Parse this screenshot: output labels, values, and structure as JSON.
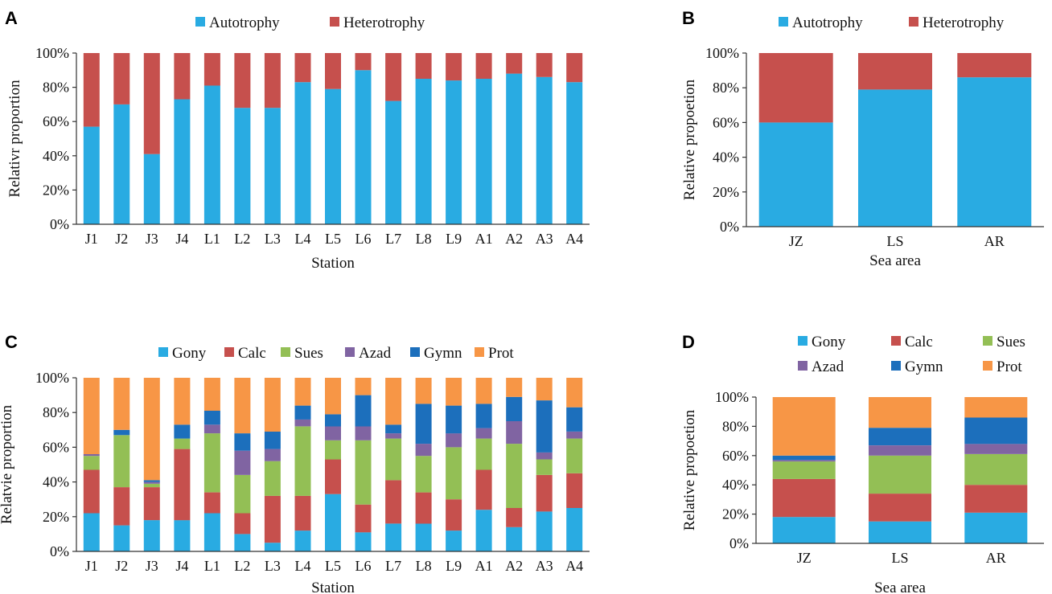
{
  "colors": {
    "Autotrophy": "#29ABE2",
    "Heterotrophy": "#C6504D",
    "Gony": "#29ABE2",
    "Calc": "#C6504D",
    "Sues": "#93BF55",
    "Azad": "#8064A2",
    "Gymn": "#1C6FBC",
    "Prot": "#F79646"
  },
  "chart_data": [
    {
      "panel": "A",
      "type": "bar",
      "stacked": true,
      "title": "",
      "xlabel": "Station",
      "ylabel": "Relativr proportion",
      "ylim": [
        0,
        100
      ],
      "yticks": [
        "0%",
        "20%",
        "40%",
        "60%",
        "80%",
        "100%"
      ],
      "legend_position": "top",
      "categories": [
        "J1",
        "J2",
        "J3",
        "J4",
        "L1",
        "L2",
        "L3",
        "L4",
        "L5",
        "L6",
        "L7",
        "L8",
        "L9",
        "A1",
        "A2",
        "A3",
        "A4"
      ],
      "series": [
        {
          "name": "Autotrophy",
          "values": [
            57,
            70,
            41,
            73,
            81,
            68,
            68,
            83,
            79,
            90,
            72,
            85,
            84,
            85,
            88,
            86,
            83
          ]
        },
        {
          "name": "Heterotrophy",
          "values": [
            43,
            30,
            59,
            27,
            19,
            32,
            32,
            17,
            21,
            10,
            28,
            15,
            16,
            15,
            12,
            14,
            17
          ]
        }
      ]
    },
    {
      "panel": "B",
      "type": "bar",
      "stacked": true,
      "title": "",
      "xlabel": "Sea area",
      "ylabel": "Relative propoetion",
      "ylim": [
        0,
        100
      ],
      "yticks": [
        "0%",
        "20%",
        "40%",
        "60%",
        "80%",
        "100%"
      ],
      "legend_position": "top",
      "categories": [
        "JZ",
        "LS",
        "AR"
      ],
      "series": [
        {
          "name": "Autotrophy",
          "values": [
            60,
            79,
            86
          ]
        },
        {
          "name": "Heterotrophy",
          "values": [
            40,
            21,
            14
          ]
        }
      ]
    },
    {
      "panel": "C",
      "type": "bar",
      "stacked": true,
      "title": "",
      "xlabel": "Station",
      "ylabel": "Relatvie proportion",
      "ylim": [
        0,
        100
      ],
      "yticks": [
        "0%",
        "20%",
        "40%",
        "60%",
        "80%",
        "100%"
      ],
      "legend_position": "top",
      "categories": [
        "J1",
        "J2",
        "J3",
        "J4",
        "L1",
        "L2",
        "L3",
        "L4",
        "L5",
        "L6",
        "L7",
        "L8",
        "L9",
        "A1",
        "A2",
        "A3",
        "A4"
      ],
      "series": [
        {
          "name": "Gony",
          "values": [
            22,
            15,
            18,
            18,
            22,
            10,
            5,
            12,
            33,
            11,
            16,
            16,
            12,
            24,
            14,
            23,
            25
          ]
        },
        {
          "name": "Calc",
          "values": [
            25,
            22,
            19,
            41,
            12,
            12,
            27,
            20,
            20,
            16,
            25,
            18,
            18,
            23,
            11,
            21,
            20
          ]
        },
        {
          "name": "Sues",
          "values": [
            8,
            30,
            2,
            6,
            34,
            22,
            20,
            40,
            11,
            37,
            24,
            21,
            30,
            18,
            37,
            9,
            20
          ]
        },
        {
          "name": "Azad",
          "values": [
            1,
            0,
            1,
            0,
            5,
            14,
            7,
            4,
            8,
            8,
            3,
            7,
            8,
            6,
            13,
            4,
            4
          ]
        },
        {
          "name": "Gymn",
          "values": [
            0,
            3,
            1,
            8,
            8,
            10,
            10,
            8,
            7,
            18,
            5,
            23,
            16,
            14,
            14,
            30,
            14
          ]
        },
        {
          "name": "Prot",
          "values": [
            44,
            30,
            59,
            27,
            19,
            32,
            31,
            16,
            21,
            10,
            27,
            15,
            16,
            15,
            11,
            13,
            17
          ]
        }
      ]
    },
    {
      "panel": "D",
      "type": "bar",
      "stacked": true,
      "title": "",
      "xlabel": "Sea area",
      "ylabel": "Relative propoetion",
      "ylim": [
        0,
        100
      ],
      "yticks": [
        "0%",
        "20%",
        "40%",
        "60%",
        "80%",
        "100%"
      ],
      "legend_position": "top",
      "categories": [
        "JZ",
        "LS",
        "AR"
      ],
      "series": [
        {
          "name": "Gony",
          "values": [
            18,
            15,
            21
          ]
        },
        {
          "name": "Calc",
          "values": [
            26,
            19,
            19
          ]
        },
        {
          "name": "Sues",
          "values": [
            12,
            26,
            21
          ]
        },
        {
          "name": "Azad",
          "values": [
            1,
            7,
            7
          ]
        },
        {
          "name": "Gymn",
          "values": [
            3,
            12,
            18
          ]
        },
        {
          "name": "Prot",
          "values": [
            40,
            21,
            14
          ]
        }
      ]
    }
  ]
}
